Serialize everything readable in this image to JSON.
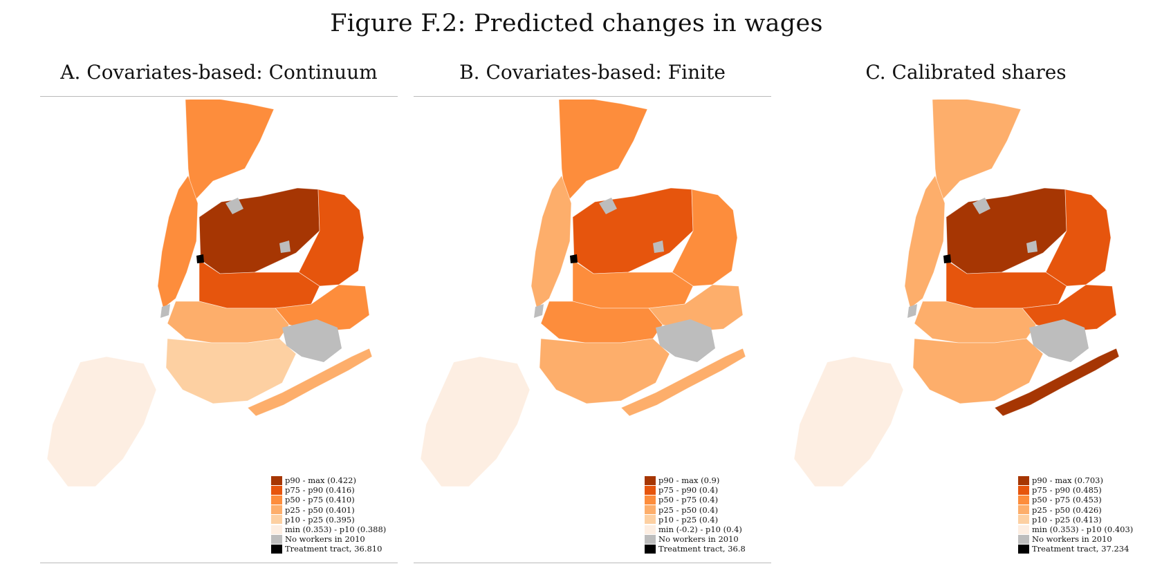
{
  "figure_title": "Figure F.2: Predicted changes in wages",
  "legend_colors": [
    "#a63603",
    "#e6550d",
    "#fd8d3c",
    "#fdae6b",
    "#fdd0a2",
    "#fdeee2",
    "#bdbdbd",
    "#000000"
  ],
  "panels": [
    {
      "title": "A. Covariates-based: Continuum",
      "legend": [
        "p90 - max (0.422)",
        "p75 - p90 (0.416)",
        "p50 - p75 (0.410)",
        "p25 - p50 (0.401)",
        "p10 - p25 (0.395)",
        "min (0.353) - p10 (0.388)",
        "No workers in 2010",
        "Treatment tract, 36.810"
      ],
      "region_fill": {
        "bronx": "#fd8d3c",
        "manhattan": "#fd8d3c",
        "queens_north": "#a63603",
        "queens_mid": "#e6550d",
        "queens_east": "#e6550d",
        "queens_south": "#fd8d3c",
        "brooklyn_north": "#fdae6b",
        "brooklyn_south": "#fdd0a2",
        "rockaway": "#fdae6b",
        "staten_island": "#fdeee2"
      }
    },
    {
      "title": "B. Covariates-based: Finite",
      "legend": [
        "p90 - max (0.9)",
        "p75 - p90 (0.4)",
        "p50 - p75 (0.4)",
        "p25 - p50 (0.4)",
        "p10 - p25 (0.4)",
        "min (-0.2) - p10 (0.4)",
        "No workers in 2010",
        "Treatment tract, 36.8"
      ],
      "region_fill": {
        "bronx": "#fd8d3c",
        "manhattan": "#fdae6b",
        "queens_north": "#e6550d",
        "queens_mid": "#fd8d3c",
        "queens_east": "#fd8d3c",
        "queens_south": "#fdae6b",
        "brooklyn_north": "#fd8d3c",
        "brooklyn_south": "#fdae6b",
        "rockaway": "#fdae6b",
        "staten_island": "#fdeee2"
      }
    },
    {
      "title": "C. Calibrated shares",
      "legend": [
        "p90 - max (0.703)",
        "p75 - p90 (0.485)",
        "p50 - p75 (0.453)",
        "p25 - p50 (0.426)",
        "p10 - p25 (0.413)",
        "min (0.353) - p10 (0.403)",
        "No workers in 2010",
        "Treatment tract, 37.234"
      ],
      "region_fill": {
        "bronx": "#fdae6b",
        "manhattan": "#fdae6b",
        "queens_north": "#a63603",
        "queens_mid": "#e6550d",
        "queens_east": "#e6550d",
        "queens_south": "#e6550d",
        "brooklyn_north": "#fdae6b",
        "brooklyn_south": "#fdae6b",
        "rockaway": "#a63603",
        "staten_island": "#fdeee2"
      }
    }
  ]
}
